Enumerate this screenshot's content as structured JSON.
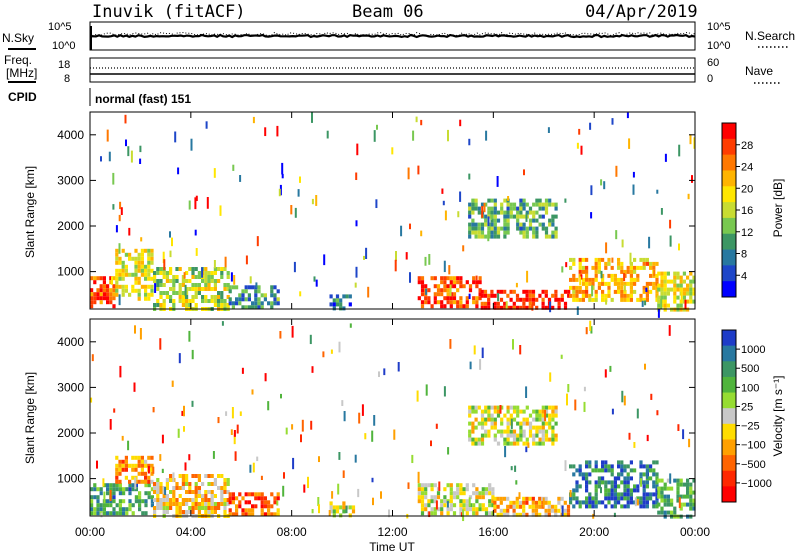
{
  "header": {
    "station": "Inuvik (fitACF)",
    "beam": "Beam 06",
    "date": "04/Apr/2019"
  },
  "nsky_panel": {
    "left_label": "N.Sky",
    "right_label": "N.Search",
    "left_ticks": [
      "10^5",
      "10^0"
    ],
    "right_ticks": [
      "10^5",
      "10^0"
    ]
  },
  "freq_panel": {
    "left_label_1": "Freq.",
    "left_label_2": "[MHz]",
    "right_label": "Nave",
    "left_ticks": [
      "18",
      "8"
    ],
    "right_ticks": [
      "60",
      "0"
    ]
  },
  "cpid": {
    "label": "CPID",
    "value": "normal (fast) 151"
  },
  "chart_data": [
    {
      "type": "heatmap",
      "name": "power",
      "ylabel": "Slant Range [km]",
      "xlabel": "",
      "ylim": [
        180,
        4500
      ],
      "x_ticks": [
        "00:00",
        "04:00",
        "08:00",
        "12:00",
        "16:00",
        "20:00",
        "00:00"
      ],
      "y_ticks": [
        1000,
        2000,
        3000,
        4000
      ],
      "colorbar": {
        "label": "Power [dB]",
        "ticks": [
          "28",
          "24",
          "20",
          "16",
          "12",
          "8",
          "4"
        ],
        "colors": [
          "#ff0000",
          "#ff3c00",
          "#ff7800",
          "#ffb400",
          "#ffe600",
          "#c8dc32",
          "#78c850",
          "#3c9664",
          "#2878a0",
          "#1e46c8",
          "#0000ff"
        ]
      },
      "bands": [
        {
          "x0": 0.0,
          "x1": 1.0,
          "y0": 200,
          "y1": 900,
          "v": 0.85
        },
        {
          "x0": 1.0,
          "x1": 2.5,
          "y0": 400,
          "y1": 1500,
          "v": 0.55
        },
        {
          "x0": 2.5,
          "x1": 5.5,
          "y0": 200,
          "y1": 1100,
          "v": 0.5
        },
        {
          "x0": 5.5,
          "x1": 7.5,
          "y0": 200,
          "y1": 700,
          "v": 0.3
        },
        {
          "x0": 9.5,
          "x1": 10.5,
          "y0": 200,
          "y1": 500,
          "v": 0.2
        },
        {
          "x0": 13.0,
          "x1": 15.5,
          "y0": 200,
          "y1": 900,
          "v": 0.85
        },
        {
          "x0": 15.5,
          "x1": 19.0,
          "y0": 200,
          "y1": 600,
          "v": 0.95
        },
        {
          "x0": 15.0,
          "x1": 18.5,
          "y0": 1800,
          "y1": 2600,
          "v": 0.35
        },
        {
          "x0": 19.0,
          "x1": 22.5,
          "y0": 400,
          "y1": 1300,
          "v": 0.65
        },
        {
          "x0": 22.5,
          "x1": 24.0,
          "y0": 200,
          "y1": 1000,
          "v": 0.55
        }
      ]
    },
    {
      "type": "heatmap",
      "name": "velocity",
      "ylabel": "Slant Range [km]",
      "xlabel": "Time UT",
      "ylim": [
        180,
        4500
      ],
      "x_ticks": [
        "00:00",
        "04:00",
        "08:00",
        "12:00",
        "16:00",
        "20:00",
        "00:00"
      ],
      "y_ticks": [
        1000,
        2000,
        3000,
        4000
      ],
      "colorbar": {
        "label": "Velocity [m s⁻¹]",
        "ticks": [
          "1000",
          "500",
          "100",
          "25",
          "−25",
          "−100",
          "−500",
          "−1000"
        ],
        "colors": [
          "#1e3cc8",
          "#2878a0",
          "#3c9664",
          "#50b43c",
          "#96dc32",
          "#c8c8c8",
          "#ffdc00",
          "#ffa000",
          "#ff6400",
          "#ff2800",
          "#ff0000"
        ]
      },
      "bands": [
        {
          "x0": 0.0,
          "x1": 2.5,
          "y0": 200,
          "y1": 900,
          "v": 0.75
        },
        {
          "x0": 1.0,
          "x1": 2.5,
          "y0": 900,
          "y1": 1500,
          "v": 0.3
        },
        {
          "x0": 2.5,
          "x1": 5.5,
          "y0": 200,
          "y1": 1100,
          "v": 0.4
        },
        {
          "x0": 5.5,
          "x1": 7.5,
          "y0": 200,
          "y1": 700,
          "v": 0.2
        },
        {
          "x0": 9.5,
          "x1": 10.5,
          "y0": 200,
          "y1": 500,
          "v": 0.5
        },
        {
          "x0": 13.0,
          "x1": 16.0,
          "y0": 200,
          "y1": 900,
          "v": 0.5
        },
        {
          "x0": 15.0,
          "x1": 18.5,
          "y0": 1800,
          "y1": 2600,
          "v": 0.5
        },
        {
          "x0": 16.0,
          "x1": 19.0,
          "y0": 200,
          "y1": 600,
          "v": 0.35
        },
        {
          "x0": 19.0,
          "x1": 22.5,
          "y0": 400,
          "y1": 1400,
          "v": 0.85
        },
        {
          "x0": 22.5,
          "x1": 24.0,
          "y0": 200,
          "y1": 1000,
          "v": 0.7
        }
      ]
    }
  ]
}
